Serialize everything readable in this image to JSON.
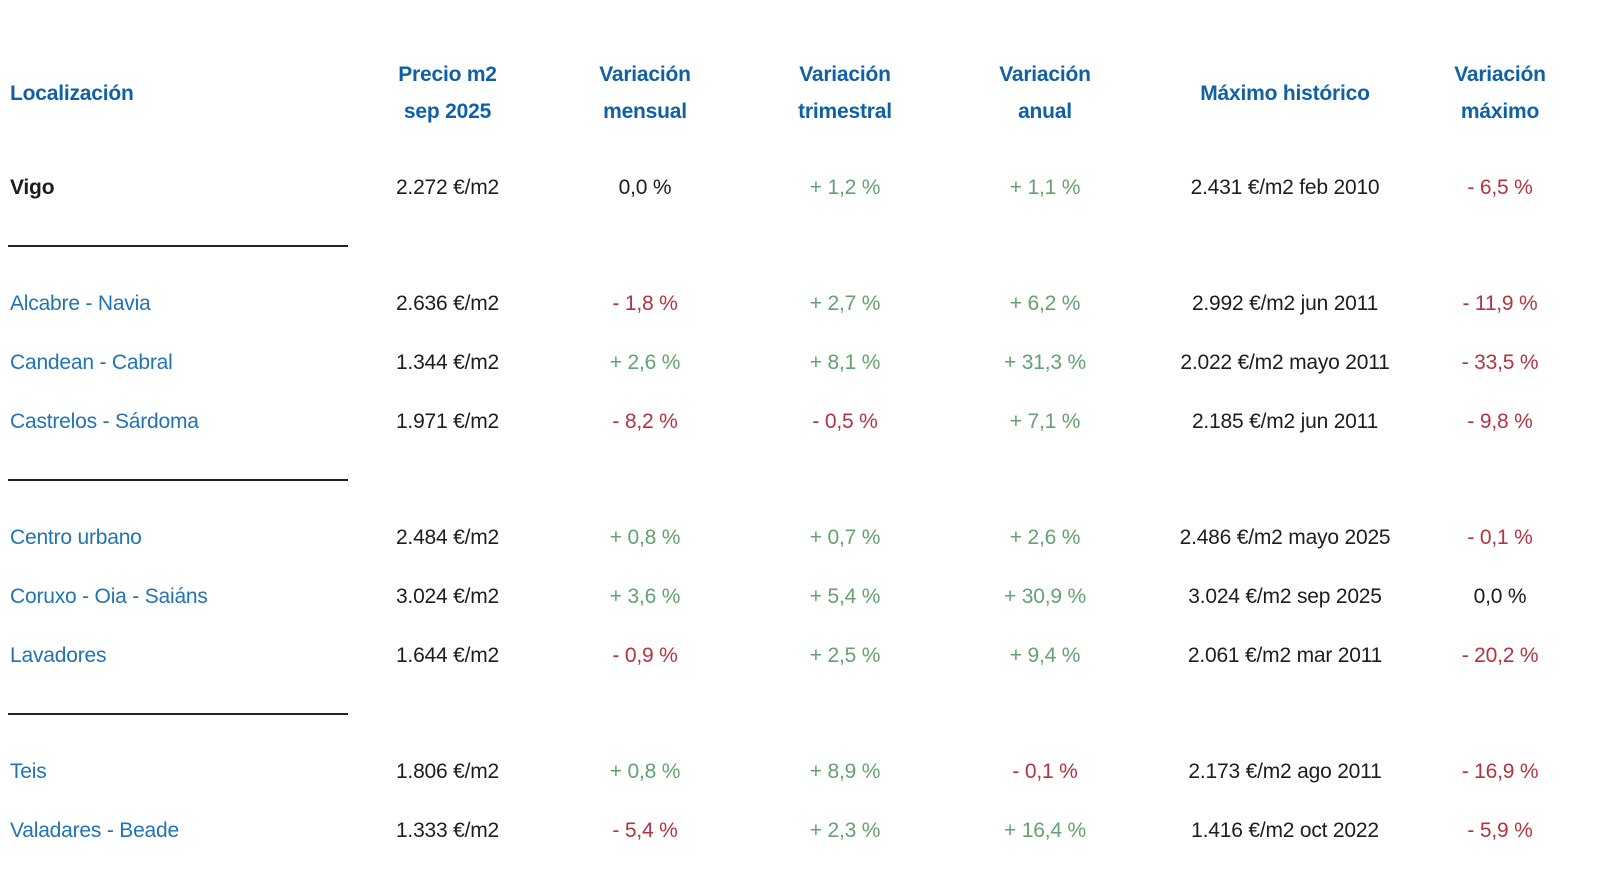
{
  "colors": {
    "header_blue": "#1160a6",
    "location_blue": "#2173b4",
    "positive_green": "#64a270",
    "negative_red": "#b2343e",
    "text_black": "#1d1d1b"
  },
  "chart_data": {
    "type": "table",
    "headers": [
      {
        "label": "Localización"
      },
      {
        "label": "Precio m2\nsep 2025"
      },
      {
        "label": "Variación\nmensual"
      },
      {
        "label": "Variación\ntrimestral"
      },
      {
        "label": "Variación\nanual"
      },
      {
        "label": "Máximo histórico"
      },
      {
        "label": "Variación\nmáximo"
      }
    ],
    "rows": [
      {
        "type": "summary",
        "location": "Vigo",
        "price": "2.272 €/m2",
        "monthly": {
          "text": "0,0 %",
          "trend": "flat"
        },
        "quarterly": {
          "text": "+ 1,2 %",
          "trend": "up"
        },
        "annual": {
          "text": "+ 1,1 %",
          "trend": "up"
        },
        "max_historic": "2.431 €/m2 feb 2010",
        "vs_max": {
          "text": "- 6,5 %",
          "trend": "down"
        }
      },
      {
        "type": "divider"
      },
      {
        "type": "district",
        "location": "Alcabre - Navia",
        "price": "2.636 €/m2",
        "monthly": {
          "text": "- 1,8 %",
          "trend": "down"
        },
        "quarterly": {
          "text": "+ 2,7 %",
          "trend": "up"
        },
        "annual": {
          "text": "+ 6,2 %",
          "trend": "up"
        },
        "max_historic": "2.992 €/m2 jun 2011",
        "vs_max": {
          "text": "- 11,9 %",
          "trend": "down"
        }
      },
      {
        "type": "district",
        "location": "Candean - Cabral",
        "price": "1.344 €/m2",
        "monthly": {
          "text": "+ 2,6 %",
          "trend": "up"
        },
        "quarterly": {
          "text": "+ 8,1 %",
          "trend": "up"
        },
        "annual": {
          "text": "+ 31,3 %",
          "trend": "up"
        },
        "max_historic": "2.022 €/m2 mayo 2011",
        "vs_max": {
          "text": "- 33,5 %",
          "trend": "down"
        }
      },
      {
        "type": "district",
        "location": "Castrelos - Sárdoma",
        "price": "1.971 €/m2",
        "monthly": {
          "text": "- 8,2 %",
          "trend": "down"
        },
        "quarterly": {
          "text": "- 0,5 %",
          "trend": "down"
        },
        "annual": {
          "text": "+ 7,1 %",
          "trend": "up"
        },
        "max_historic": "2.185 €/m2 jun 2011",
        "vs_max": {
          "text": "- 9,8 %",
          "trend": "down"
        }
      },
      {
        "type": "divider"
      },
      {
        "type": "district",
        "location": "Centro urbano",
        "price": "2.484 €/m2",
        "monthly": {
          "text": "+ 0,8 %",
          "trend": "up"
        },
        "quarterly": {
          "text": "+ 0,7 %",
          "trend": "up"
        },
        "annual": {
          "text": "+ 2,6 %",
          "trend": "up"
        },
        "max_historic": "2.486 €/m2 mayo 2025",
        "vs_max": {
          "text": "- 0,1 %",
          "trend": "down"
        }
      },
      {
        "type": "district",
        "location": "Coruxo - Oia - Saiáns",
        "price": "3.024 €/m2",
        "monthly": {
          "text": "+ 3,6 %",
          "trend": "up"
        },
        "quarterly": {
          "text": "+ 5,4 %",
          "trend": "up"
        },
        "annual": {
          "text": "+ 30,9 %",
          "trend": "up"
        },
        "max_historic": "3.024 €/m2 sep 2025",
        "vs_max": {
          "text": "0,0 %",
          "trend": "flat"
        }
      },
      {
        "type": "district",
        "location": "Lavadores",
        "price": "1.644 €/m2",
        "monthly": {
          "text": "- 0,9 %",
          "trend": "down"
        },
        "quarterly": {
          "text": "+ 2,5 %",
          "trend": "up"
        },
        "annual": {
          "text": "+ 9,4 %",
          "trend": "up"
        },
        "max_historic": "2.061 €/m2 mar 2011",
        "vs_max": {
          "text": "- 20,2 %",
          "trend": "down"
        }
      },
      {
        "type": "divider"
      },
      {
        "type": "district",
        "location": "Teis",
        "price": "1.806 €/m2",
        "monthly": {
          "text": "+ 0,8 %",
          "trend": "up"
        },
        "quarterly": {
          "text": "+ 8,9 %",
          "trend": "up"
        },
        "annual": {
          "text": "- 0,1 %",
          "trend": "down"
        },
        "max_historic": "2.173 €/m2 ago 2011",
        "vs_max": {
          "text": "- 16,9 %",
          "trend": "down"
        }
      },
      {
        "type": "district",
        "location": "Valadares - Beade",
        "price": "1.333 €/m2",
        "monthly": {
          "text": "- 5,4 %",
          "trend": "down"
        },
        "quarterly": {
          "text": "+ 2,3 %",
          "trend": "up"
        },
        "annual": {
          "text": "+ 16,4 %",
          "trend": "up"
        },
        "max_historic": "1.416 €/m2 oct 2022",
        "vs_max": {
          "text": "- 5,9 %",
          "trend": "down"
        }
      }
    ]
  }
}
